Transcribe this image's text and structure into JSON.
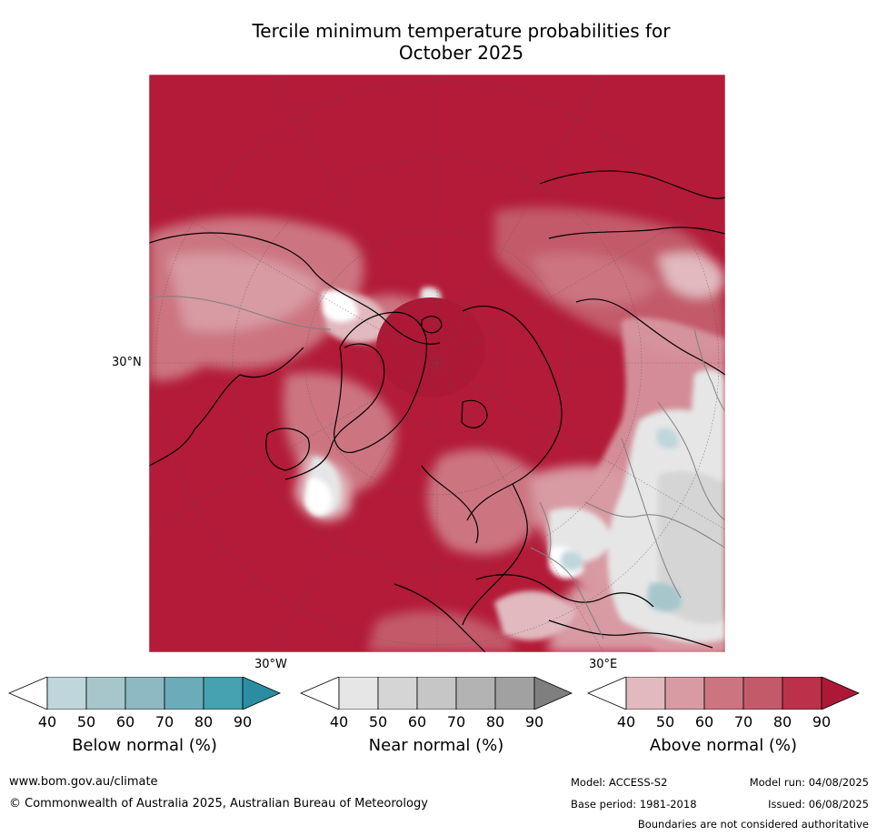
{
  "title_line1": "Tercile minimum temperature probabilities for",
  "title_line2": "October 2025",
  "map": {
    "lat_label": "30°N",
    "lon_label_west": "30°W",
    "lon_label_east": "30°E",
    "dominant_category": "Above normal",
    "ocean_color": "#b31b38"
  },
  "colorbars": [
    {
      "label": "Below normal (%)",
      "ticks": [
        "40",
        "50",
        "60",
        "70",
        "80",
        "90"
      ],
      "colors": [
        "#ffffff",
        "#bfd6dc",
        "#a6c6cc",
        "#8dbac2",
        "#6cacba",
        "#46a1b1",
        "#2a8da1"
      ]
    },
    {
      "label": "Near normal (%)",
      "ticks": [
        "40",
        "50",
        "60",
        "70",
        "80",
        "90"
      ],
      "colors": [
        "#ffffff",
        "#e6e6e6",
        "#d5d5d5",
        "#c6c6c6",
        "#b3b3b3",
        "#a1a1a1",
        "#7f7f7f"
      ]
    },
    {
      "label": "Above normal (%)",
      "ticks": [
        "40",
        "50",
        "60",
        "70",
        "80",
        "90"
      ],
      "colors": [
        "#ffffff",
        "#e1b9bf",
        "#d89aa3",
        "#cc7581",
        "#c35a6a",
        "#bb3149",
        "#ac1836"
      ]
    }
  ],
  "footer": {
    "website": "www.bom.gov.au/climate",
    "copyright": "© Commonwealth of Australia 2025, Australian Bureau of Meteorology",
    "model": "Model: ACCESS-S2",
    "model_run": "Model run: 04/08/2025",
    "base_period": "Base period: 1981-2018",
    "issued": "Issued: 06/08/2025",
    "disclaimer": "Boundaries are not considered authoritative"
  }
}
